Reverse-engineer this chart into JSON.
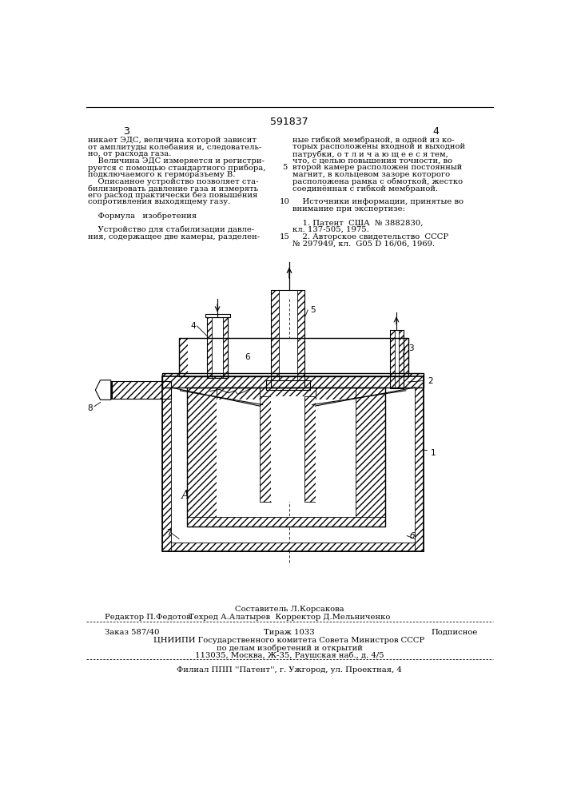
{
  "page_number_center": "591837",
  "page_col_left": "3",
  "page_col_right": "4",
  "left_col_text": [
    "никает ЭДС, величина которой зависит",
    "от амплитуды колебания и, следователь-",
    "но, от расхода газа.",
    "    Величина ЭДС измеряется и регистри-",
    "руется с помощью стандартного прибора,",
    "подключаемого к герморазъему В.",
    "    Описанное устройство позволяет ста-",
    "билизировать давление газа и измерять",
    "его расход практически без повышения",
    "сопротивления выходящему газу.",
    "",
    "    Формула   изобретения",
    "",
    "    Устройство для стабилизации давле-",
    "ния, содержащее две камеры, разделен-"
  ],
  "right_col_text": [
    "ные гибкой мембраной, в одной из ко-",
    "торых расположены входной и выходной",
    "патрубки, о т л и ч а ю щ е е с я тем,",
    "что, с целью повышения точности, во",
    "второй камере расположен постоянный",
    "магнит, в кольцевом зазоре которого",
    "расположена рамка с обмоткой, жестко",
    "соединённая с гибкой мембраной.",
    "",
    "    Источники информации, принятые во",
    "внимание при экспертизе:",
    "",
    "    1. Патент  США  № 3882830,",
    "кл. 137-505, 1975.",
    "    2. Авторское свидетельство  СССР",
    "№ 297949, кл.  G05 D 16/06, 1969."
  ],
  "line_number_5": "5",
  "line_number_10": "10",
  "line_number_15": "15",
  "footer_line1": "Составитель Л.Корсакова",
  "footer_editor": "Редактор П.Федотов",
  "footer_techred": "Техред А.Алатырев  Корректор Д.Мельниченко",
  "footer_order": "Заказ 587/40",
  "footer_tirazh": "Тираж 1033",
  "footer_podpis": "Подписное",
  "footer_cniipи": "ЦНИИПИ Государственного комитета Совета Министров СССР",
  "footer_po_delam": "по делам изобретений и открытий",
  "footer_address": "113035, Москва, Ж-35, Раушская наб., д. 4/5",
  "footer_filial": "Филиал ППП ''Патент'', г. Ужгород, ул. Проектная, 4",
  "bg_color": "#ffffff",
  "text_color": "#000000",
  "font_size_body": 7.2,
  "font_size_header": 8.5
}
